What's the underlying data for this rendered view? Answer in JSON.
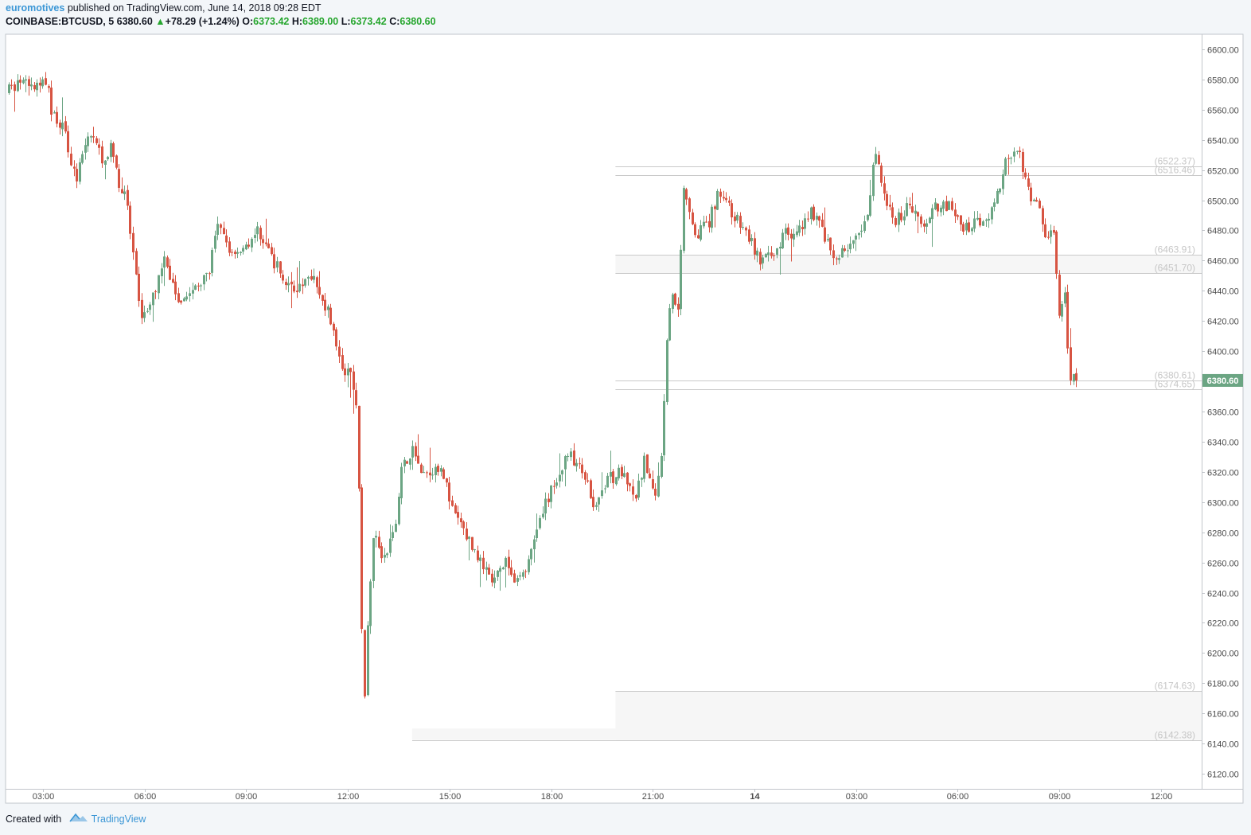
{
  "header": {
    "author": "euromotives",
    "published_text": " published on TradingView.com, June 14, 2018 09:28 EDT",
    "symbol": "COINBASE:BTCUSD",
    "interval": "5",
    "last_price": "6380.60",
    "change_arrow": "▲",
    "change": "+78.29 (+1.24%)",
    "open_label": "O:",
    "open": "6373.42",
    "high_label": "H:",
    "high": "6389.00",
    "low_label": "L:",
    "low": "6373.42",
    "close_label": "C:",
    "close": "6380.60"
  },
  "footer": {
    "created_with": "Created with",
    "brand": "TradingView"
  },
  "colors": {
    "up": "#6ba583",
    "down": "#d75442",
    "last_price_badge": "#6ba583",
    "level_line": "#c9c9c9",
    "level_label": "#c6c6c6"
  },
  "chart_data": {
    "type": "candlestick",
    "symbol": "COINBASE:BTCUSD",
    "interval": "5",
    "ylim": [
      6110,
      6610
    ],
    "y_ticks": [
      "6600.00",
      "6580.00",
      "6560.00",
      "6540.00",
      "6520.00",
      "6500.00",
      "6480.00",
      "6460.00",
      "6440.00",
      "6420.00",
      "6400.00",
      "6380.00",
      "6360.00",
      "6340.00",
      "6320.00",
      "6300.00",
      "6280.00",
      "6260.00",
      "6240.00",
      "6220.00",
      "6200.00",
      "6180.00",
      "6160.00",
      "6140.00",
      "6120.00"
    ],
    "x_ticks": [
      {
        "label": "03:00",
        "hours": 3
      },
      {
        "label": "06:00",
        "hours": 6
      },
      {
        "label": "09:00",
        "hours": 9
      },
      {
        "label": "12:00",
        "hours": 12
      },
      {
        "label": "15:00",
        "hours": 15
      },
      {
        "label": "18:00",
        "hours": 18
      },
      {
        "label": "21:00",
        "hours": 21
      },
      {
        "label": "14",
        "hours": 24
      },
      {
        "label": "03:00",
        "hours": 27
      },
      {
        "label": "06:00",
        "hours": 30
      },
      {
        "label": "09:00",
        "hours": 33
      },
      {
        "label": "12:00",
        "hours": 36
      }
    ],
    "x_range_hours": [
      1.9,
      37.2
    ],
    "last_price_label": "6380.60",
    "last_price": 6380.6,
    "levels": [
      {
        "label": "(6522.37)",
        "value": 6522.37,
        "start_hour": 19.9
      },
      {
        "label": "(6516.46)",
        "value": 6516.46,
        "start_hour": 19.9
      },
      {
        "label": "(6463.91)",
        "value": 6463.91,
        "start_hour": 19.9
      },
      {
        "label": "(6451.70)",
        "value": 6451.7,
        "start_hour": 19.9
      },
      {
        "label": "(6380.61)",
        "value": 6380.61,
        "start_hour": 19.9
      },
      {
        "label": "(6374.65)",
        "value": 6374.65,
        "start_hour": 19.9
      },
      {
        "label": "(6174.63)",
        "value": 6174.63,
        "start_hour": 19.9
      },
      {
        "label": "(6142.38)",
        "value": 6142.38,
        "start_hour": 13.9
      }
    ],
    "zones": [
      {
        "from": 6451.7,
        "to": 6463.91,
        "start_hour": 19.9
      },
      {
        "from": 6142.38,
        "to": 6174.63,
        "start_hour": 19.9
      },
      {
        "from": 6142.38,
        "to": 6150.0,
        "start_hour": 13.9
      }
    ],
    "anchors": [
      {
        "hours": 1.95,
        "price": 6572
      },
      {
        "hours": 2.4,
        "price": 6577
      },
      {
        "hours": 2.9,
        "price": 6574
      },
      {
        "hours": 3.1,
        "price": 6582
      },
      {
        "hours": 3.3,
        "price": 6558
      },
      {
        "hours": 3.7,
        "price": 6545
      },
      {
        "hours": 4.0,
        "price": 6512
      },
      {
        "hours": 4.4,
        "price": 6545
      },
      {
        "hours": 4.8,
        "price": 6528
      },
      {
        "hours": 5.1,
        "price": 6535
      },
      {
        "hours": 5.3,
        "price": 6508
      },
      {
        "hours": 5.5,
        "price": 6500
      },
      {
        "hours": 5.7,
        "price": 6462
      },
      {
        "hours": 5.9,
        "price": 6425
      },
      {
        "hours": 6.2,
        "price": 6428
      },
      {
        "hours": 6.6,
        "price": 6462
      },
      {
        "hours": 7.0,
        "price": 6435
      },
      {
        "hours": 7.5,
        "price": 6440
      },
      {
        "hours": 7.9,
        "price": 6450
      },
      {
        "hours": 8.2,
        "price": 6482
      },
      {
        "hours": 8.6,
        "price": 6465
      },
      {
        "hours": 9.0,
        "price": 6470
      },
      {
        "hours": 9.4,
        "price": 6480
      },
      {
        "hours": 9.8,
        "price": 6462
      },
      {
        "hours": 10.2,
        "price": 6445
      },
      {
        "hours": 10.6,
        "price": 6440
      },
      {
        "hours": 11.0,
        "price": 6452
      },
      {
        "hours": 11.3,
        "price": 6435
      },
      {
        "hours": 11.6,
        "price": 6418
      },
      {
        "hours": 11.9,
        "price": 6382
      },
      {
        "hours": 12.1,
        "price": 6388
      },
      {
        "hours": 12.3,
        "price": 6360
      },
      {
        "hours": 12.4,
        "price": 6285
      },
      {
        "hours": 12.5,
        "price": 6155
      },
      {
        "hours": 12.65,
        "price": 6232
      },
      {
        "hours": 12.8,
        "price": 6280
      },
      {
        "hours": 13.1,
        "price": 6262
      },
      {
        "hours": 13.4,
        "price": 6280
      },
      {
        "hours": 13.6,
        "price": 6320
      },
      {
        "hours": 13.9,
        "price": 6335
      },
      {
        "hours": 14.3,
        "price": 6320
      },
      {
        "hours": 14.8,
        "price": 6325
      },
      {
        "hours": 15.1,
        "price": 6295
      },
      {
        "hours": 15.5,
        "price": 6280
      },
      {
        "hours": 16.0,
        "price": 6258
      },
      {
        "hours": 16.3,
        "price": 6246
      },
      {
        "hours": 16.7,
        "price": 6260
      },
      {
        "hours": 17.0,
        "price": 6245
      },
      {
        "hours": 17.4,
        "price": 6262
      },
      {
        "hours": 17.7,
        "price": 6290
      },
      {
        "hours": 18.1,
        "price": 6310
      },
      {
        "hours": 18.5,
        "price": 6333
      },
      {
        "hours": 18.9,
        "price": 6322
      },
      {
        "hours": 19.3,
        "price": 6300
      },
      {
        "hours": 19.7,
        "price": 6315
      },
      {
        "hours": 20.1,
        "price": 6320
      },
      {
        "hours": 20.5,
        "price": 6300
      },
      {
        "hours": 20.8,
        "price": 6328
      },
      {
        "hours": 21.1,
        "price": 6300
      },
      {
        "hours": 21.3,
        "price": 6332
      },
      {
        "hours": 21.45,
        "price": 6410
      },
      {
        "hours": 21.6,
        "price": 6440
      },
      {
        "hours": 21.8,
        "price": 6430
      },
      {
        "hours": 21.95,
        "price": 6510
      },
      {
        "hours": 22.3,
        "price": 6478
      },
      {
        "hours": 22.7,
        "price": 6485
      },
      {
        "hours": 23.0,
        "price": 6508
      },
      {
        "hours": 23.4,
        "price": 6490
      },
      {
        "hours": 23.8,
        "price": 6478
      },
      {
        "hours": 24.2,
        "price": 6460
      },
      {
        "hours": 24.6,
        "price": 6462
      },
      {
        "hours": 24.9,
        "price": 6480
      },
      {
        "hours": 25.3,
        "price": 6478
      },
      {
        "hours": 25.7,
        "price": 6494
      },
      {
        "hours": 26.1,
        "price": 6478
      },
      {
        "hours": 26.4,
        "price": 6460
      },
      {
        "hours": 26.8,
        "price": 6470
      },
      {
        "hours": 27.1,
        "price": 6475
      },
      {
        "hours": 27.4,
        "price": 6490
      },
      {
        "hours": 27.6,
        "price": 6537
      },
      {
        "hours": 27.9,
        "price": 6500
      },
      {
        "hours": 28.2,
        "price": 6485
      },
      {
        "hours": 28.6,
        "price": 6498
      },
      {
        "hours": 29.0,
        "price": 6485
      },
      {
        "hours": 29.4,
        "price": 6497
      },
      {
        "hours": 29.8,
        "price": 6495
      },
      {
        "hours": 30.2,
        "price": 6480
      },
      {
        "hours": 30.6,
        "price": 6485
      },
      {
        "hours": 31.1,
        "price": 6495
      },
      {
        "hours": 31.4,
        "price": 6522
      },
      {
        "hours": 31.8,
        "price": 6537
      },
      {
        "hours": 32.1,
        "price": 6505
      },
      {
        "hours": 32.4,
        "price": 6495
      },
      {
        "hours": 32.6,
        "price": 6480
      },
      {
        "hours": 32.9,
        "price": 6478
      },
      {
        "hours": 33.0,
        "price": 6418
      },
      {
        "hours": 33.2,
        "price": 6435
      },
      {
        "hours": 33.35,
        "price": 6376
      },
      {
        "hours": 33.45,
        "price": 6380.6
      }
    ]
  }
}
